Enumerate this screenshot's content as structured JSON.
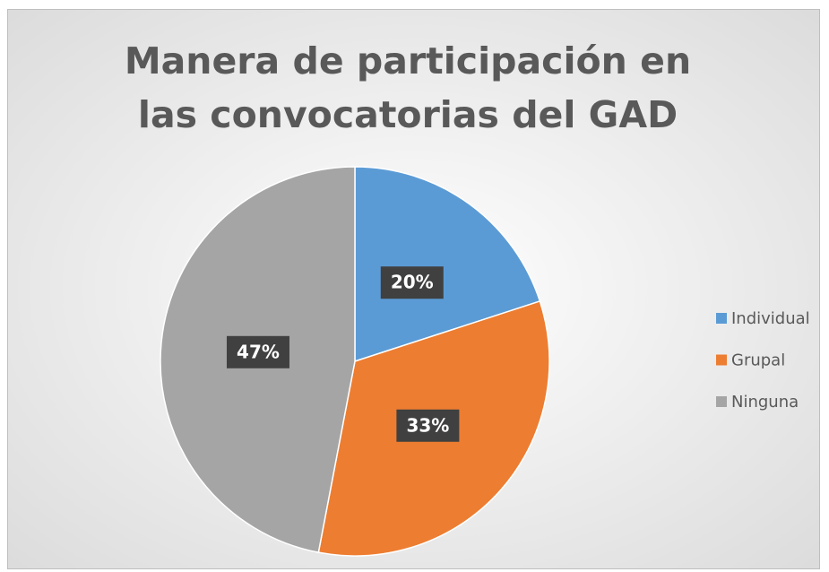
{
  "chart_data": {
    "type": "pie",
    "title": "Manera de participación en las convocatorias del GAD",
    "categories": [
      "Individual",
      "Grupal",
      "Ninguna"
    ],
    "values": [
      20,
      33,
      47
    ],
    "value_labels": [
      "20%",
      "33%",
      "47%"
    ],
    "colors": [
      "#5b9bd5",
      "#ed7d31",
      "#a5a5a5"
    ],
    "legend": "right"
  }
}
